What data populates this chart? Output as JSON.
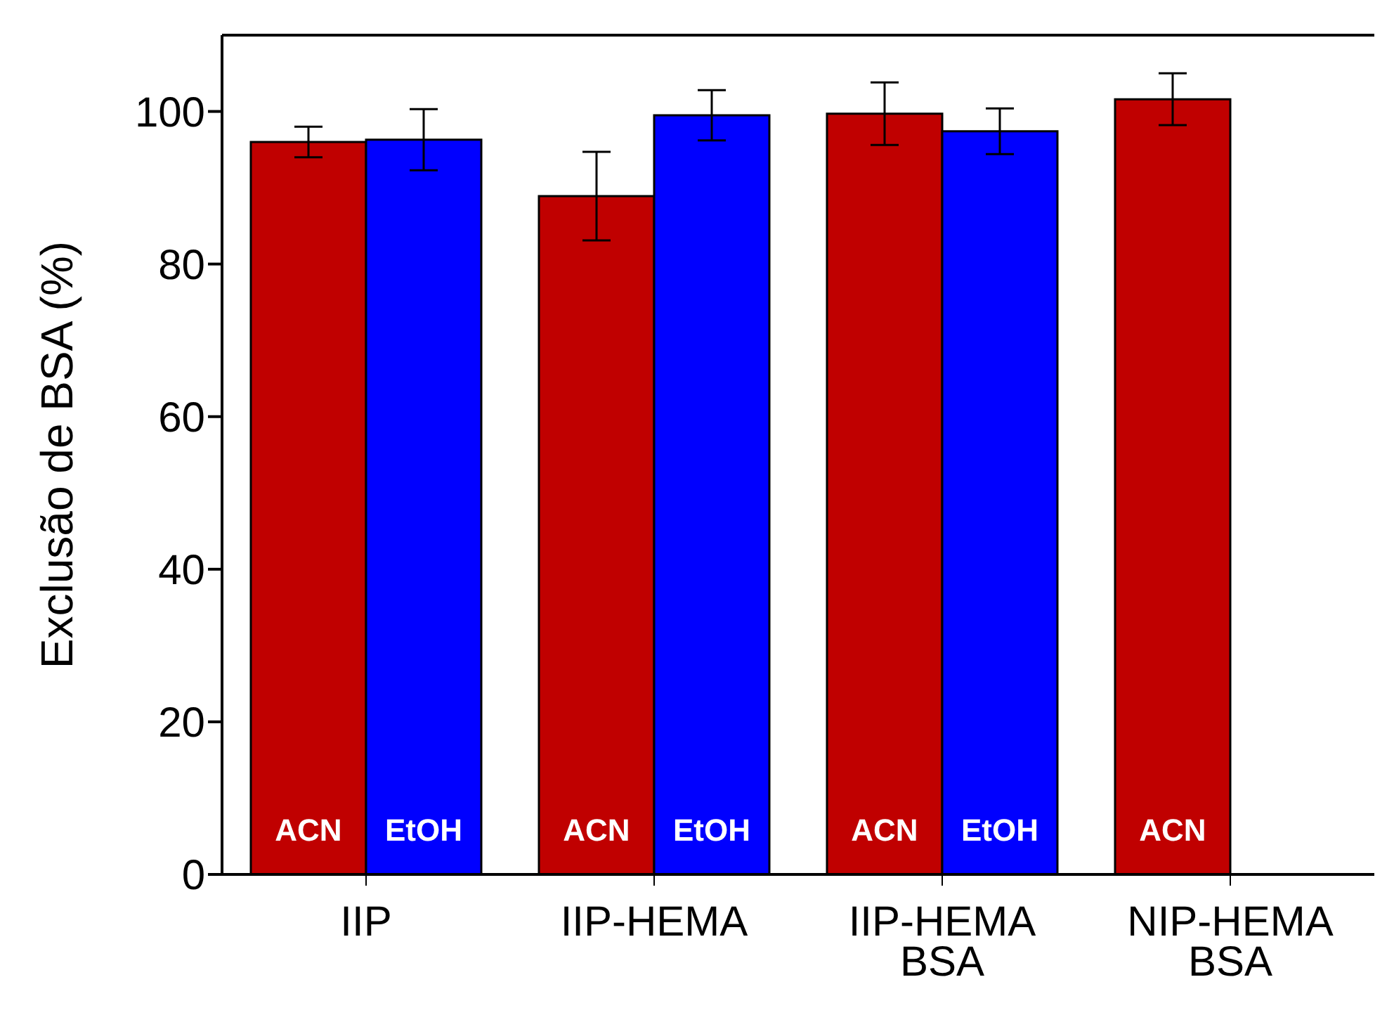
{
  "chart_data": {
    "type": "bar",
    "ylabel": "Exclusão de BSA (%)",
    "categories": [
      "IIP",
      "IIP-HEMA",
      "IIP-HEMA\nBSA",
      "NIP-HEMA\nBSA"
    ],
    "series": [
      {
        "name": "ACN",
        "color": "#c00000",
        "values": [
          96,
          88.9,
          99.7,
          101.6
        ],
        "errors": [
          2,
          5.8,
          4.1,
          3.4
        ]
      },
      {
        "name": "EtOH",
        "color": "#0000ff",
        "values": [
          96.3,
          99.5,
          97.4,
          null
        ],
        "errors": [
          4,
          3.3,
          3,
          null
        ]
      }
    ],
    "ylim": [
      0,
      110
    ],
    "yticks": [
      0,
      20,
      40,
      60,
      80,
      100
    ],
    "grid": false,
    "legend": false
  }
}
